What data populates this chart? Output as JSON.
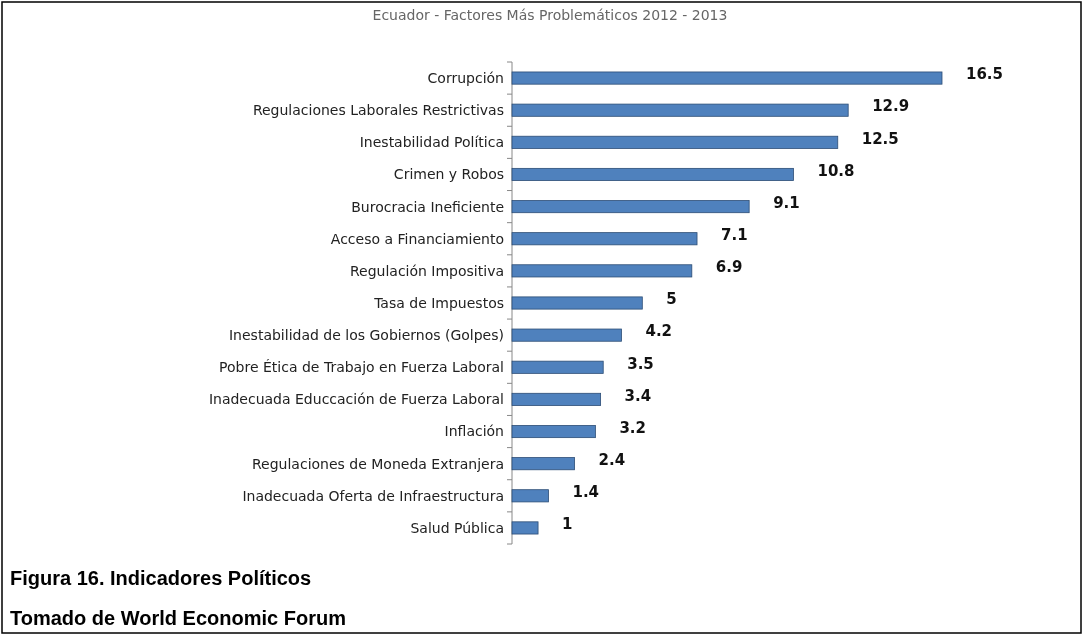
{
  "chart_data": {
    "type": "bar",
    "orientation": "horizontal",
    "title": "Ecuador - Factores Más Problemáticos 2012 - 2013",
    "categories": [
      "Corrupción",
      "Regulaciones Laborales Restrictivas",
      "Inestabilidad Política",
      "Crimen y Robos",
      "Burocracia Ineficiente",
      "Acceso a Financiamiento",
      "Regulación Impositiva",
      "Tasa de Impuestos",
      "Inestabilidad de los Gobiernos (Golpes)",
      "Pobre Ética de Trabajo en Fuerza Laboral",
      "Inadecuada Educcación de Fuerza Laboral",
      "Inflación",
      "Regulaciones de Moneda Extranjera",
      "Inadecuada Oferta de Infraestructura",
      "Salud Pública"
    ],
    "values": [
      16.5,
      12.9,
      12.5,
      10.8,
      9.1,
      7.1,
      6.9,
      5,
      4.2,
      3.5,
      3.4,
      3.2,
      2.4,
      1.4,
      1
    ],
    "color": "#4f81bd",
    "data_labels": true,
    "annotations": [
      "Figura 16. Indicadores Políticos",
      "Tomado de World Economic Forum"
    ]
  }
}
